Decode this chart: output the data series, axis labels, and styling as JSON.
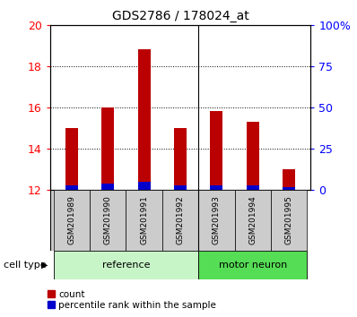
{
  "title": "GDS2786 / 178024_at",
  "samples": [
    "GSM201989",
    "GSM201990",
    "GSM201991",
    "GSM201992",
    "GSM201993",
    "GSM201994",
    "GSM201995"
  ],
  "count_values": [
    15.0,
    16.0,
    18.85,
    15.0,
    15.85,
    15.3,
    13.0
  ],
  "percentile_values": [
    3,
    4,
    5,
    3,
    3,
    3,
    2
  ],
  "ylim_left": [
    12,
    20
  ],
  "ylim_right": [
    0,
    100
  ],
  "yticks_left": [
    12,
    14,
    16,
    18,
    20
  ],
  "yticks_right": [
    0,
    25,
    50,
    75,
    100
  ],
  "ytick_labels_right": [
    "0",
    "25",
    "50",
    "75",
    "100%"
  ],
  "bar_bottom": 12.0,
  "groups": [
    {
      "label": "reference",
      "indices": [
        0,
        1,
        2,
        3
      ],
      "color": "#c8f5c8"
    },
    {
      "label": "motor neuron",
      "indices": [
        4,
        5,
        6
      ],
      "color": "#5de05d"
    }
  ],
  "bar_color": "#bb0000",
  "percentile_color": "#0000cc",
  "bar_width": 0.35,
  "background_color": "#ffffff",
  "label_bg_color": "#cccccc",
  "ref_color": "#c8f5c8",
  "motor_color": "#55dd55",
  "legend_count_label": "count",
  "legend_pct_label": "percentile rank within the sample",
  "div_index": 3.5
}
